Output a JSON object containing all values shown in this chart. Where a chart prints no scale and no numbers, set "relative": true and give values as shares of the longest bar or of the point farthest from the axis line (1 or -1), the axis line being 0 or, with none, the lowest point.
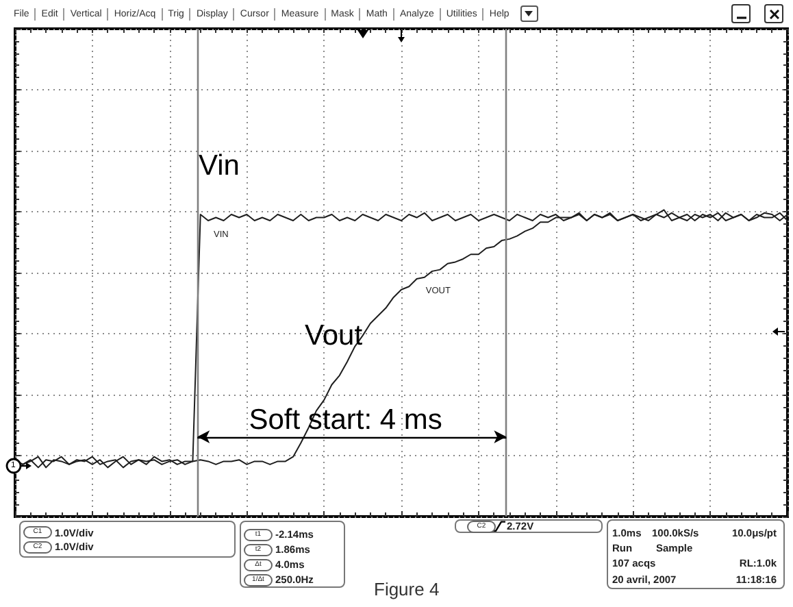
{
  "chart_data": {
    "type": "line",
    "relative": true,
    "categories": [
      null,
      null,
      null,
      null,
      null,
      null,
      null,
      null,
      null,
      null,
      null,
      null,
      null,
      null,
      null,
      null,
      null,
      null,
      null,
      null,
      null,
      null,
      null,
      null,
      null,
      null,
      null,
      null,
      null,
      null,
      null,
      null,
      null,
      null,
      null,
      null,
      null,
      null,
      null,
      null,
      null,
      null,
      null,
      null,
      null,
      null,
      null,
      null,
      null,
      null,
      null,
      null,
      null,
      null,
      null,
      null,
      null,
      null,
      null,
      null,
      null,
      null,
      null,
      null,
      null,
      null,
      null,
      null,
      null,
      null,
      null,
      null,
      null,
      null,
      null,
      null,
      null,
      null,
      null,
      null,
      null,
      null,
      null,
      null,
      null,
      null,
      null,
      null,
      null,
      null,
      null,
      null,
      null,
      null,
      null,
      null,
      null,
      null,
      null,
      null,
      null
    ],
    "grid": true,
    "line_style": "solid",
    "series": [
      {
        "name": "VIN",
        "color": "#1e1e1e",
        "values": [
          0.18,
          0.17,
          0.185,
          0.16,
          0.185,
          0.18,
          0.195,
          0.17,
          0.18,
          0.185,
          0.17,
          0.185,
          0.16,
          0.18,
          0.195,
          0.17,
          0.185,
          0.18,
          0.185,
          0.17,
          0.18,
          0.185,
          0.17,
          0.18,
          0.985,
          0.965,
          0.975,
          0.965,
          0.985,
          0.975,
          0.985,
          0.965,
          0.975,
          0.965,
          0.985,
          0.975,
          0.965,
          0.985,
          0.965,
          0.975,
          0.975,
          0.985,
          0.965,
          0.975,
          0.965,
          0.985,
          0.975,
          0.965,
          0.985,
          0.975,
          0.965,
          0.985,
          0.975,
          0.99,
          0.965,
          0.975,
          0.985,
          0.965,
          0.975,
          0.985,
          0.965,
          0.975,
          0.985,
          0.975,
          0.965,
          0.985,
          0.975,
          0.965,
          0.985,
          0.975,
          0.985,
          0.965,
          0.975,
          0.99,
          0.965,
          0.985,
          0.975,
          0.985,
          0.965,
          0.975,
          0.985,
          0.965,
          0.975,
          0.985,
          1.0,
          0.965,
          0.975,
          0.985,
          0.965,
          0.985,
          0.975,
          0.99,
          0.965,
          0.975,
          0.985,
          0.965,
          0.985,
          0.975,
          0.975,
          0.99,
          0.965
        ]
      },
      {
        "name": "VOUT",
        "color": "#1e1e1e",
        "values": [
          0.185,
          0.17,
          0.18,
          0.195,
          0.16,
          0.185,
          0.18,
          0.17,
          0.185,
          0.18,
          0.195,
          0.17,
          0.18,
          0.185,
          0.16,
          0.18,
          0.185,
          0.17,
          0.195,
          0.18,
          0.185,
          0.17,
          0.18,
          0.18,
          0.185,
          0.18,
          0.17,
          0.18,
          0.18,
          0.185,
          0.17,
          0.18,
          0.18,
          0.17,
          0.18,
          0.18,
          0.195,
          0.24,
          0.29,
          0.345,
          0.38,
          0.43,
          0.46,
          0.505,
          0.555,
          0.59,
          0.63,
          0.655,
          0.68,
          0.715,
          0.74,
          0.75,
          0.775,
          0.78,
          0.8,
          0.805,
          0.825,
          0.83,
          0.84,
          0.855,
          0.855,
          0.875,
          0.88,
          0.9,
          0.905,
          0.915,
          0.93,
          0.94,
          0.96,
          0.96,
          0.975,
          0.975,
          0.975,
          0.985,
          0.965,
          0.985,
          0.975,
          0.99,
          0.965,
          0.975,
          0.985,
          0.975,
          0.965,
          0.985,
          0.975,
          0.99,
          0.975,
          0.965,
          0.985,
          0.975,
          0.985,
          0.965,
          0.99,
          0.975,
          0.985,
          0.965,
          0.975,
          0.99,
          0.985,
          0.965,
          0.985
        ]
      }
    ],
    "ref_lines": [
      {
        "axis": "x",
        "color": "#808080"
      },
      {
        "axis": "x",
        "color": "#808080"
      }
    ],
    "annotations": [
      "File",
      "Edit",
      "Vertical",
      "Horiz/Acq",
      "Trig",
      "Display",
      "Cursor",
      "Measure",
      "Mask",
      "Math",
      "Analyze",
      "Utilities",
      "Help",
      "Vin",
      "Vout",
      "Soft start: 4 ms",
      "1",
      "C1",
      "1.0V/div",
      "C2",
      "1.0V/div",
      "t1",
      "-2.14ms",
      "t2",
      "1.86ms",
      "Δt",
      "4.0ms",
      "1/Δt",
      "250.0Hz",
      "C2",
      "2.72V",
      "1.0ms",
      "100.0kS/s",
      "10.0μs/pt",
      "Run",
      "Sample",
      "107 acqs",
      "RL:1.0k",
      "20 avril, 2007",
      "11:18:16",
      "Figure 4"
    ]
  }
}
